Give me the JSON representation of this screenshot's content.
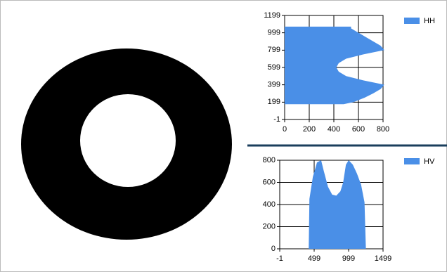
{
  "chart_data": [
    {
      "type": "area",
      "orientation": "horizontal",
      "legend": "top-right",
      "grid": true,
      "xlim": [
        0,
        800
      ],
      "xticks": [
        0,
        200,
        400,
        600,
        800
      ],
      "ylim": [
        -1,
        1199
      ],
      "yticks": [
        -1,
        199,
        399,
        599,
        799,
        999,
        1199
      ],
      "y": [
        175,
        200,
        250,
        300,
        350,
        400,
        450,
        500,
        550,
        600,
        650,
        700,
        750,
        800,
        850,
        900,
        950,
        1000,
        1050,
        1070
      ],
      "series": [
        {
          "name": "HH",
          "color": "#4a8fe7",
          "values": [
            480,
            560,
            650,
            720,
            780,
            810,
            640,
            500,
            440,
            420,
            440,
            500,
            640,
            810,
            780,
            720,
            660,
            600,
            540,
            540
          ]
        }
      ]
    },
    {
      "type": "area",
      "orientation": "vertical",
      "legend": "top-right",
      "grid": true,
      "xlim": [
        -1,
        1499
      ],
      "xticks": [
        -1,
        499,
        999,
        1499
      ],
      "ylim": [
        0,
        800
      ],
      "yticks": [
        0,
        200,
        400,
        600,
        800
      ],
      "x": [
        420,
        430,
        480,
        540,
        600,
        640,
        700,
        760,
        820,
        880,
        920,
        960,
        1000,
        1060,
        1120,
        1180,
        1230,
        1250
      ],
      "series": [
        {
          "name": "HV",
          "color": "#4a8fe7",
          "values": [
            0,
            450,
            650,
            780,
            800,
            700,
            560,
            490,
            480,
            520,
            600,
            760,
            800,
            760,
            680,
            580,
            420,
            0
          ]
        }
      ]
    }
  ]
}
